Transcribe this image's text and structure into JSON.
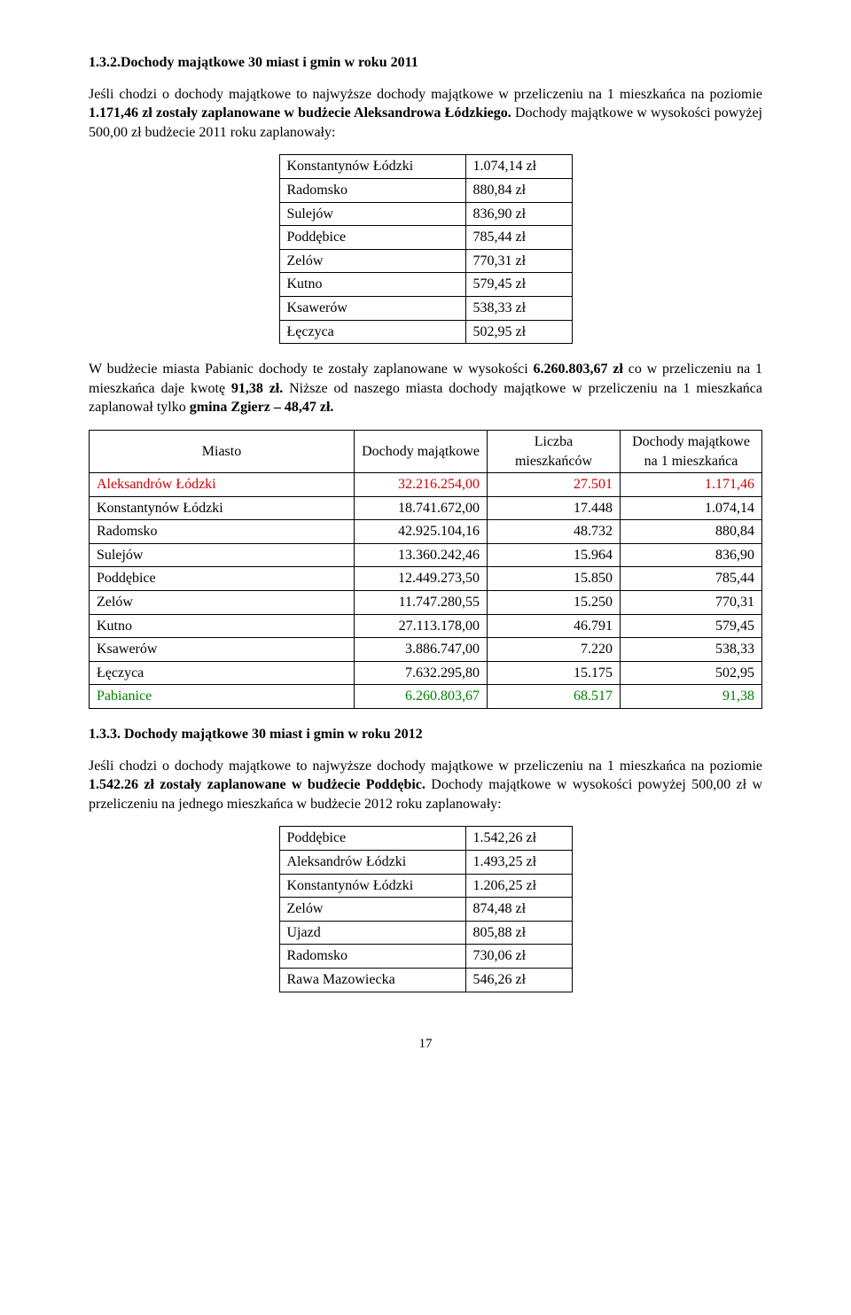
{
  "section1": {
    "title": "1.3.2.Dochody majątkowe 30 miast i gmin w roku 2011",
    "para1a": "Jeśli chodzi o dochody majątkowe to najwyższe dochody majątkowe w przeliczeniu na 1 mieszkańca na poziomie ",
    "para1b": "1.171,46 zł zostały zaplanowane w budżecie Aleksandrowa Łódzkiego.",
    "para1c": " Dochody majątkowe w wysokości  powyżej 500,00 zł budżecie 2011 roku zaplanowały:"
  },
  "table1": {
    "rows": [
      {
        "name": "Konstantynów Łódzki",
        "value": "1.074,14 zł"
      },
      {
        "name": "Radomsko",
        "value": "880,84 zł"
      },
      {
        "name": "Sulejów",
        "value": "836,90 zł"
      },
      {
        "name": "Poddębice",
        "value": "785,44 zł"
      },
      {
        "name": "Zelów",
        "value": "770,31 zł"
      },
      {
        "name": "Kutno",
        "value": "579,45 zł"
      },
      {
        "name": "Ksawerów",
        "value": "538,33 zł"
      },
      {
        "name": "Łęczyca",
        "value": "502,95 zł"
      }
    ]
  },
  "para2": {
    "a": "W budżecie miasta Pabianic dochody te zostały zaplanowane w wysokości ",
    "b": "6.260.803,67 zł",
    "c": " co w przeliczeniu na 1 mieszkańca daje kwotę ",
    "d": "91,38 zł.",
    "e": " Niższe od naszego miasta dochody majątkowe w przeliczeniu na 1 mieszkańca zaplanował tylko ",
    "f": "gmina Zgierz – 48,47 zł."
  },
  "table2": {
    "headers": {
      "c1": "Miasto",
      "c2": "Dochody majątkowe",
      "c3": "Liczba mieszkańców",
      "c4": "Dochody majątkowe na 1 mieszkańca"
    },
    "rows": [
      {
        "name": "Aleksandrów Łódzki",
        "v1": "32.216.254,00",
        "v2": "27.501",
        "v3": "1.171,46",
        "color": "red"
      },
      {
        "name": "Konstantynów Łódzki",
        "v1": "18.741.672,00",
        "v2": "17.448",
        "v3": "1.074,14",
        "color": ""
      },
      {
        "name": "Radomsko",
        "v1": "42.925.104,16",
        "v2": "48.732",
        "v3": "880,84",
        "color": ""
      },
      {
        "name": "Sulejów",
        "v1": "13.360.242,46",
        "v2": "15.964",
        "v3": "836,90",
        "color": ""
      },
      {
        "name": "Poddębice",
        "v1": "12.449.273,50",
        "v2": "15.850",
        "v3": "785,44",
        "color": ""
      },
      {
        "name": "Zelów",
        "v1": "11.747.280,55",
        "v2": "15.250",
        "v3": "770,31",
        "color": ""
      },
      {
        "name": "Kutno",
        "v1": "27.113.178,00",
        "v2": "46.791",
        "v3": "579,45",
        "color": ""
      },
      {
        "name": "Ksawerów",
        "v1": "3.886.747,00",
        "v2": "7.220",
        "v3": "538,33",
        "color": ""
      },
      {
        "name": "Łęczyca",
        "v1": "7.632.295,80",
        "v2": "15.175",
        "v3": "502,95",
        "color": ""
      },
      {
        "name": "Pabianice",
        "v1": "6.260.803,67",
        "v2": "68.517",
        "v3": "91,38",
        "color": "green"
      }
    ]
  },
  "section2": {
    "title": "1.3.3. Dochody majątkowe 30 miast i gmin w roku 2012",
    "para1a": "Jeśli chodzi o dochody majątkowe to najwyższe dochody majątkowe w przeliczeniu na 1 mieszkańca na poziomie ",
    "para1b": "1.542.26 zł zostały zaplanowane w budżecie Poddębic.",
    "para1c": " Dochody majątkowe w wysokości  powyżej 500,00 zł w przeliczeniu na jednego mieszkańca w budżecie 2012 roku zaplanowały:"
  },
  "table3": {
    "rows": [
      {
        "name": "Poddębice",
        "value": "1.542,26 zł"
      },
      {
        "name": "Aleksandrów Łódzki",
        "value": "1.493,25 zł"
      },
      {
        "name": "Konstantynów Łódzki",
        "value": "1.206,25 zł"
      },
      {
        "name": "Zelów",
        "value": "874,48 zł"
      },
      {
        "name": "Ujazd",
        "value": "805,88 zł"
      },
      {
        "name": "Radomsko",
        "value": "730,06 zł"
      },
      {
        "name": "Rawa Mazowiecka",
        "value": "546,26 zł"
      }
    ]
  },
  "pageNumber": "17"
}
